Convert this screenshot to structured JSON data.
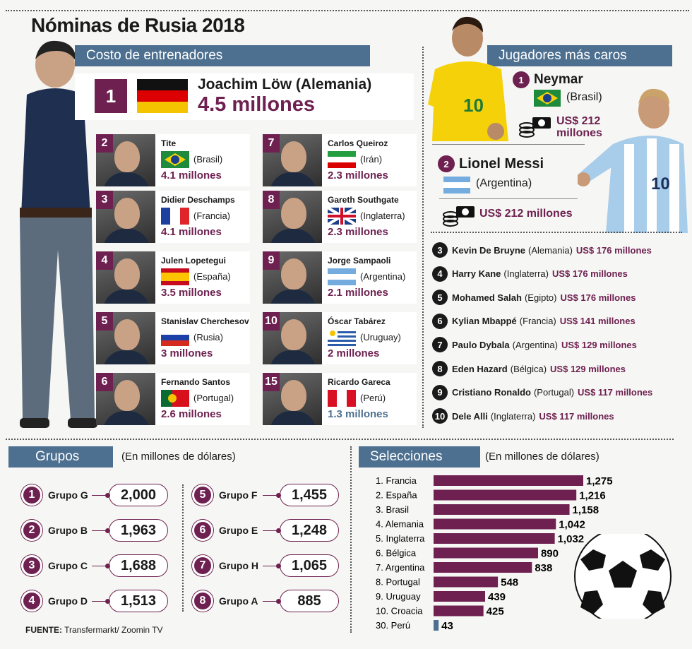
{
  "title": "Nóminas de Rusia 2018",
  "coaches_header": "Costo de entrenadores",
  "players_header": "Jugadores más caros",
  "top_coach": {
    "rank": "1",
    "name": "Joachim Löw (Alemania)",
    "amount": "4.5 millones"
  },
  "coaches": [
    {
      "rank": "2",
      "name": "Tite",
      "country": "(Brasil)",
      "amount": "4.1 millones",
      "flag": "brasil"
    },
    {
      "rank": "3",
      "name": "Didier Deschamps",
      "country": "(Francia)",
      "amount": "4.1 millones",
      "flag": "francia"
    },
    {
      "rank": "4",
      "name": "Julen Lopetegui",
      "country": "(España)",
      "amount": "3.5 millones",
      "flag": "espana"
    },
    {
      "rank": "5",
      "name": "Stanislav Cherchesov",
      "country": "(Rusia)",
      "amount": "3 millones",
      "flag": "rusia"
    },
    {
      "rank": "6",
      "name": "Fernando Santos",
      "country": "(Portugal)",
      "amount": "2.6 millones",
      "flag": "portugal"
    },
    {
      "rank": "7",
      "name": "Carlos Queiroz",
      "country": "(Irán)",
      "amount": "2.3 millones",
      "flag": "iran"
    },
    {
      "rank": "8",
      "name": "Gareth Southgate",
      "country": "(Inglaterra)",
      "amount": "2.3 millones",
      "flag": "uk"
    },
    {
      "rank": "9",
      "name": "Jorge Sampaoli",
      "country": "(Argentina)",
      "amount": "2.1 millones",
      "flag": "argentina"
    },
    {
      "rank": "10",
      "name": "Óscar Tabárez",
      "country": "(Uruguay)",
      "amount": "2 millones",
      "flag": "uruguay"
    },
    {
      "rank": "15",
      "name": "Ricardo Gareca",
      "country": "(Perú)",
      "amount": "1.3 millones",
      "flag": "peru"
    }
  ],
  "top_players": [
    {
      "rank": "1",
      "name": "Neymar",
      "country": "(Brasil)",
      "amount_line1": "US$ 212",
      "amount_line2": "millones"
    },
    {
      "rank": "2",
      "name": "Lionel Messi",
      "country": "(Argentina)",
      "amount": "US$ 212 millones"
    }
  ],
  "players": [
    {
      "rank": "3",
      "name": "Kevin De Bruyne",
      "country": "(Alemania)",
      "amount": "US$ 176 millones"
    },
    {
      "rank": "4",
      "name": "Harry Kane",
      "country": "(Inglaterra)",
      "amount": "US$ 176 millones"
    },
    {
      "rank": "5",
      "name": "Mohamed Salah",
      "country": "(Egipto)",
      "amount": "US$ 176 millones"
    },
    {
      "rank": "6",
      "name": "Kylian Mbappé",
      "country": "(Francia)",
      "amount": "US$ 141 millones"
    },
    {
      "rank": "7",
      "name": "Paulo Dybala",
      "country": "(Argentina)",
      "amount": "US$ 129 millones"
    },
    {
      "rank": "8",
      "name": "Eden Hazard",
      "country": "(Bélgica)",
      "amount": "US$ 129 millones"
    },
    {
      "rank": "9",
      "name": "Cristiano Ronaldo",
      "country": "(Portugal)",
      "amount": "US$ 117 millones"
    },
    {
      "rank": "10",
      "name": "Dele Alli",
      "country": "(Inglaterra)",
      "amount": "US$ 117 millones"
    }
  ],
  "groups_header": "Grupos",
  "groups_unit": "(En millones de dólares)",
  "groups": [
    {
      "rank": "1",
      "label": "Grupo G",
      "value": "2,000"
    },
    {
      "rank": "2",
      "label": "Grupo B",
      "value": "1,963"
    },
    {
      "rank": "3",
      "label": "Grupo C",
      "value": "1,688"
    },
    {
      "rank": "4",
      "label": "Grupo D",
      "value": "1,513"
    },
    {
      "rank": "5",
      "label": "Grupo F",
      "value": "1,455"
    },
    {
      "rank": "6",
      "label": "Grupo E",
      "value": "1,248"
    },
    {
      "rank": "7",
      "label": "Grupo H",
      "value": "1,065"
    },
    {
      "rank": "8",
      "label": "Grupo A",
      "value": "885"
    }
  ],
  "teams_header": "Selecciones",
  "teams_unit": "(En millones de dólares)",
  "source_label": "FUENTE:",
  "source_text": " Transfermarkt/ Zoomin TV",
  "colors": {
    "accent": "#6e2150",
    "band": "#4d7090"
  },
  "chart_data": {
    "type": "bar",
    "orientation": "horizontal",
    "categories": [
      "1. Francia",
      "2. España",
      "3. Brasil",
      "4. Alemania",
      "5. Inglaterra",
      "6. Bélgica",
      "7. Argentina",
      "8. Portugal",
      "9. Uruguay",
      "10. Croacia",
      "30. Perú"
    ],
    "values": [
      1275,
      1216,
      1158,
      1042,
      1032,
      890,
      838,
      548,
      439,
      425,
      43
    ],
    "value_labels": [
      "1,275",
      "1,216",
      "1,158",
      "1,042",
      "1,032",
      "890",
      "838",
      "548",
      "439",
      "425",
      "43"
    ],
    "title": "Selecciones",
    "subtitle": "(En millones de dólares)",
    "xlim": [
      0,
      1275
    ],
    "colors": [
      "#6e2150",
      "#6e2150",
      "#6e2150",
      "#6e2150",
      "#6e2150",
      "#6e2150",
      "#6e2150",
      "#6e2150",
      "#6e2150",
      "#6e2150",
      "#4d7090"
    ]
  }
}
